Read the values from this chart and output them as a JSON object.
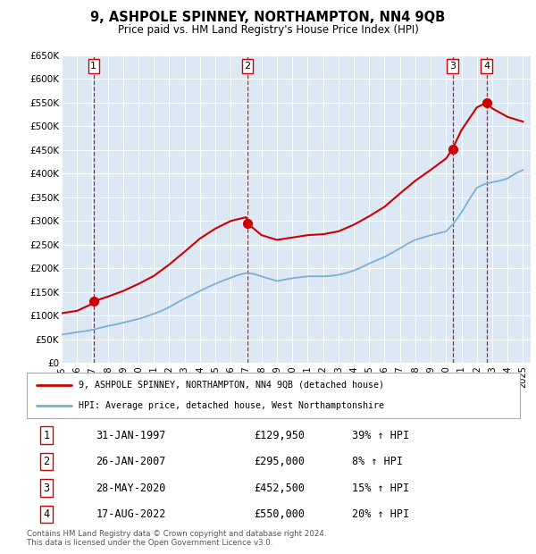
{
  "title": "9, ASHPOLE SPINNEY, NORTHAMPTON, NN4 9QB",
  "subtitle": "Price paid vs. HM Land Registry's House Price Index (HPI)",
  "background_color": "#dce9f5",
  "plot_bg_color": "#dce9f5",
  "grid_color": "#ffffff",
  "ylim": [
    0,
    650000
  ],
  "yticks": [
    0,
    50000,
    100000,
    150000,
    200000,
    250000,
    300000,
    350000,
    400000,
    450000,
    500000,
    550000,
    600000,
    650000
  ],
  "ytick_labels": [
    "£0",
    "£50K",
    "£100K",
    "£150K",
    "£200K",
    "£250K",
    "£300K",
    "£350K",
    "£400K",
    "£450K",
    "£500K",
    "£550K",
    "£600K",
    "£650K"
  ],
  "hpi_color": "#7bafd4",
  "price_color": "#cc0000",
  "sale_dot_color": "#cc0000",
  "sale_marker_size": 7,
  "transactions": [
    {
      "num": 1,
      "date_str": "31-JAN-1997",
      "year": 1997.08,
      "price": 129950,
      "pct": "39%",
      "dir": "↑"
    },
    {
      "num": 2,
      "date_str": "26-JAN-2007",
      "year": 2007.08,
      "price": 295000,
      "pct": "8%",
      "dir": "↑"
    },
    {
      "num": 3,
      "date_str": "28-MAY-2020",
      "year": 2020.42,
      "price": 452500,
      "pct": "15%",
      "dir": "↑"
    },
    {
      "num": 4,
      "date_str": "17-AUG-2022",
      "year": 2022.63,
      "price": 550000,
      "pct": "20%",
      "dir": "↑"
    }
  ],
  "hpi_years": [
    1995.0,
    1995.5,
    1996.0,
    1996.5,
    1997.0,
    1997.5,
    1998.0,
    1998.5,
    1999.0,
    1999.5,
    2000.0,
    2000.5,
    2001.0,
    2001.5,
    2002.0,
    2002.5,
    2003.0,
    2003.5,
    2004.0,
    2004.5,
    2005.0,
    2005.5,
    2006.0,
    2006.5,
    2007.0,
    2007.5,
    2008.0,
    2008.5,
    2009.0,
    2009.5,
    2010.0,
    2010.5,
    2011.0,
    2011.5,
    2012.0,
    2012.5,
    2013.0,
    2013.5,
    2014.0,
    2014.5,
    2015.0,
    2015.5,
    2016.0,
    2016.5,
    2017.0,
    2017.5,
    2018.0,
    2018.5,
    2019.0,
    2019.5,
    2020.0,
    2020.5,
    2021.0,
    2021.5,
    2022.0,
    2022.5,
    2023.0,
    2023.5,
    2024.0,
    2024.5,
    2025.0
  ],
  "hpi_values": [
    60000,
    62000,
    65000,
    67000,
    70000,
    74000,
    78000,
    81000,
    85000,
    89000,
    93000,
    98000,
    104000,
    110000,
    118000,
    127000,
    136000,
    144000,
    152000,
    160000,
    167000,
    174000,
    180000,
    186000,
    190000,
    188000,
    183000,
    178000,
    173000,
    176000,
    179000,
    181000,
    183000,
    183000,
    183000,
    184000,
    186000,
    190000,
    195000,
    202000,
    210000,
    217000,
    224000,
    233000,
    242000,
    252000,
    260000,
    265000,
    270000,
    274000,
    278000,
    295000,
    318000,
    345000,
    370000,
    378000,
    382000,
    385000,
    390000,
    400000,
    408000
  ],
  "price_years": [
    1995.0,
    1996.0,
    1997.0,
    1997.08,
    1998.0,
    1999.0,
    2000.0,
    2001.0,
    2002.0,
    2003.0,
    2004.0,
    2005.0,
    2006.0,
    2007.0,
    2007.08,
    2008.0,
    2009.0,
    2010.0,
    2011.0,
    2012.0,
    2013.0,
    2014.0,
    2015.0,
    2016.0,
    2017.0,
    2018.0,
    2019.0,
    2020.0,
    2020.42,
    2021.0,
    2022.0,
    2022.63,
    2023.0,
    2024.0,
    2025.0
  ],
  "price_values": [
    105000,
    110000,
    125000,
    129950,
    140000,
    152000,
    167000,
    184000,
    208000,
    235000,
    263000,
    284000,
    300000,
    308000,
    295000,
    270000,
    260000,
    265000,
    270000,
    272000,
    278000,
    292000,
    310000,
    330000,
    358000,
    385000,
    408000,
    432000,
    452500,
    492000,
    540000,
    550000,
    538000,
    520000,
    510000
  ],
  "legend_line1": "9, ASHPOLE SPINNEY, NORTHAMPTON, NN4 9QB (detached house)",
  "legend_line2": "HPI: Average price, detached house, West Northamptonshire",
  "footer": "Contains HM Land Registry data © Crown copyright and database right 2024.\nThis data is licensed under the Open Government Licence v3.0.",
  "xlim_start": 1995,
  "xlim_end": 2025.5,
  "xticks": [
    1995,
    1996,
    1997,
    1998,
    1999,
    2000,
    2001,
    2002,
    2003,
    2004,
    2005,
    2006,
    2007,
    2008,
    2009,
    2010,
    2011,
    2012,
    2013,
    2014,
    2015,
    2016,
    2017,
    2018,
    2019,
    2020,
    2021,
    2022,
    2023,
    2024,
    2025
  ]
}
